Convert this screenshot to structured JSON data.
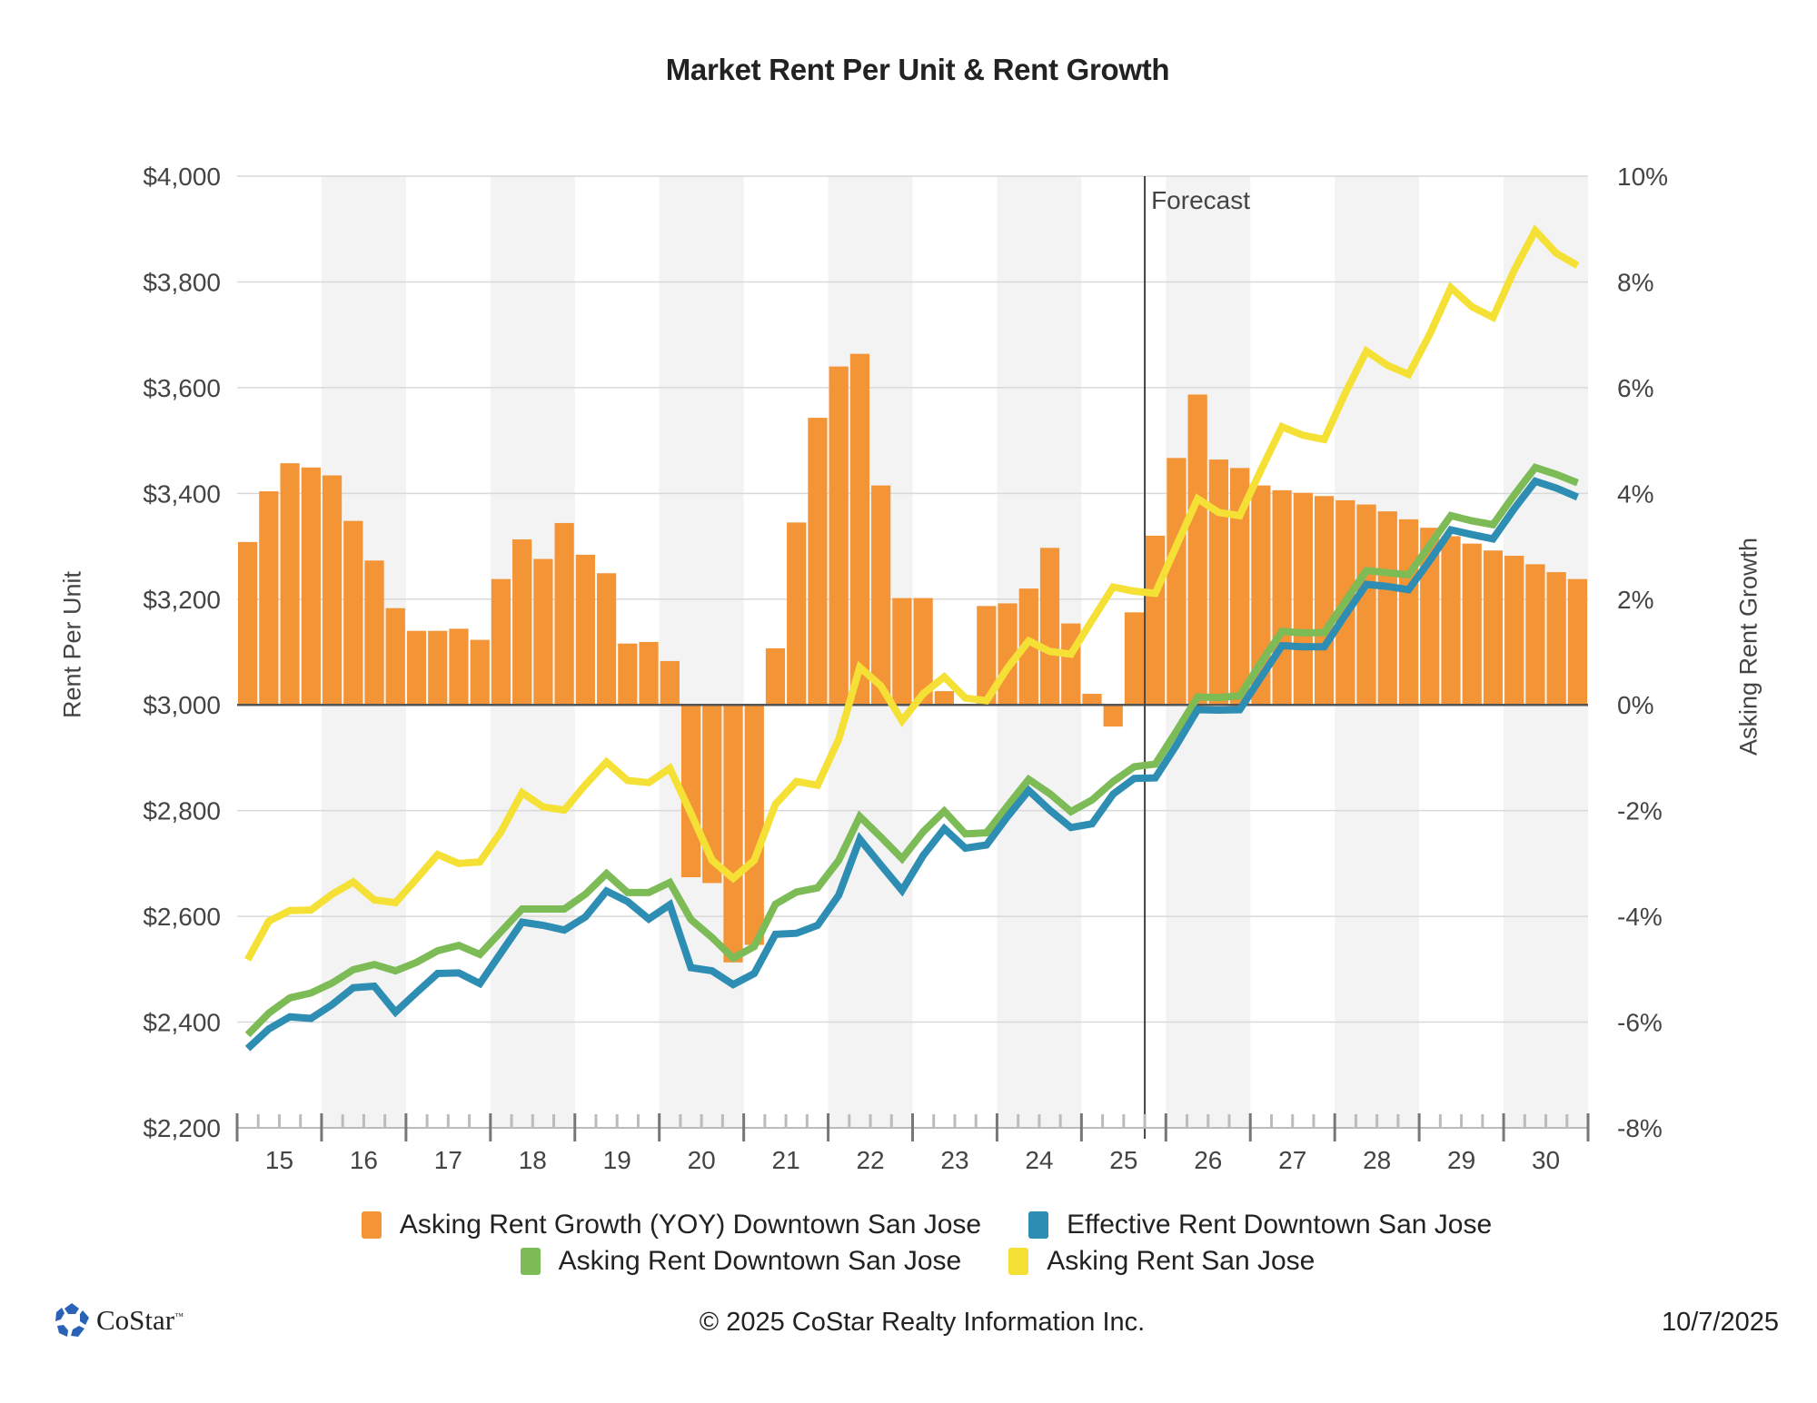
{
  "chart_data": {
    "type": "bar+line",
    "title": "Market Rent Per Unit & Rent Growth",
    "xlabel": "",
    "ylabel": "Rent Per Unit",
    "y2label": "Asking Rent Growth",
    "ylim": [
      2200,
      4000
    ],
    "y2lim": [
      -8,
      10
    ],
    "yticks": [
      "$2,200",
      "$2,400",
      "$2,600",
      "$2,800",
      "$3,000",
      "$3,200",
      "$3,400",
      "$3,600",
      "$3,800",
      "$4,000"
    ],
    "ytick_values": [
      2200,
      2400,
      2600,
      2800,
      3000,
      3200,
      3400,
      3600,
      3800,
      4000
    ],
    "y2ticks": [
      "-8%",
      "-6%",
      "-4%",
      "-2%",
      "0%",
      "2%",
      "4%",
      "6%",
      "8%",
      "10%"
    ],
    "y2tick_values": [
      -8,
      -6,
      -4,
      -2,
      0,
      2,
      4,
      6,
      8,
      10
    ],
    "categories": [
      "15",
      "16",
      "17",
      "18",
      "19",
      "20",
      "21",
      "22",
      "23",
      "24",
      "25",
      "26",
      "27",
      "28",
      "29",
      "30"
    ],
    "periods_per_category": 4,
    "grid": true,
    "alternating_shaded_years": true,
    "forecast": {
      "label": "Forecast",
      "starts_after_period_index": 42
    },
    "legend_position": "bottom",
    "series": [
      {
        "name": "Asking Rent Growth (YOY) Downtown San Jose",
        "type": "bar",
        "axis": "right",
        "color": "#f39436",
        "unit": "%",
        "values": [
          3.08,
          4.04,
          4.57,
          4.49,
          4.34,
          3.48,
          2.73,
          1.83,
          1.4,
          1.4,
          1.44,
          1.23,
          2.38,
          3.13,
          2.76,
          3.44,
          2.84,
          2.49,
          1.16,
          1.19,
          0.83,
          -3.26,
          -3.37,
          -4.87,
          -4.54,
          1.07,
          3.45,
          5.43,
          6.4,
          6.64,
          4.15,
          2.02,
          2.02,
          0.26,
          0.02,
          1.87,
          1.92,
          2.2,
          2.97,
          1.54,
          0.21,
          -0.41,
          1.75,
          3.2,
          4.67,
          5.87,
          4.64,
          4.48,
          4.15,
          4.06,
          4.01,
          3.95,
          3.87,
          3.79,
          3.66,
          3.51,
          3.35,
          3.19,
          3.05,
          2.92,
          2.82,
          2.66,
          2.51,
          2.38
        ]
      },
      {
        "name": "Effective Rent Downtown San Jose",
        "type": "line",
        "axis": "left",
        "color": "#2e8db3",
        "unit": "$",
        "values": [
          2350,
          2387,
          2410,
          2407,
          2433,
          2465,
          2468,
          2419,
          2456,
          2492,
          2493,
          2473,
          2531,
          2589,
          2583,
          2574,
          2599,
          2648,
          2628,
          2595,
          2622,
          2503,
          2497,
          2471,
          2492,
          2566,
          2568,
          2583,
          2640,
          2746,
          2697,
          2649,
          2715,
          2766,
          2729,
          2735,
          2789,
          2838,
          2801,
          2768,
          2775,
          2831,
          2861,
          2862,
          2924,
          2991,
          2990,
          2991,
          3052,
          3112,
          3110,
          3110,
          3170,
          3228,
          3224,
          3218,
          3273,
          3331,
          3322,
          3314,
          3371,
          3423,
          3410,
          3393
        ]
      },
      {
        "name": "Asking Rent Downtown San Jose",
        "type": "line",
        "axis": "left",
        "color": "#7dbb57",
        "unit": "$",
        "values": [
          2376,
          2417,
          2446,
          2455,
          2474,
          2499,
          2509,
          2497,
          2513,
          2535,
          2545,
          2528,
          2571,
          2614,
          2614,
          2614,
          2642,
          2681,
          2645,
          2645,
          2664,
          2594,
          2560,
          2521,
          2543,
          2623,
          2646,
          2654,
          2706,
          2789,
          2750,
          2709,
          2760,
          2799,
          2756,
          2758,
          2809,
          2859,
          2832,
          2798,
          2820,
          2855,
          2883,
          2888,
          2950,
          3015,
          3014,
          3017,
          3080,
          3139,
          3136,
          3137,
          3196,
          3254,
          3250,
          3246,
          3302,
          3358,
          3348,
          3341,
          3397,
          3449,
          3436,
          3420
        ]
      },
      {
        "name": "Asking Rent San Jose",
        "type": "line",
        "axis": "left",
        "color": "#f5e136",
        "unit": "$",
        "values": [
          2518,
          2591,
          2611,
          2612,
          2642,
          2665,
          2631,
          2626,
          2671,
          2717,
          2700,
          2703,
          2760,
          2834,
          2807,
          2801,
          2849,
          2892,
          2857,
          2853,
          2880,
          2795,
          2706,
          2672,
          2706,
          2812,
          2855,
          2848,
          2935,
          3071,
          3036,
          2970,
          3021,
          3053,
          3013,
          3008,
          3070,
          3121,
          3101,
          3096,
          3160,
          3223,
          3215,
          3211,
          3301,
          3390,
          3364,
          3358,
          3444,
          3526,
          3510,
          3502,
          3590,
          3669,
          3642,
          3625,
          3701,
          3789,
          3753,
          3733,
          3822,
          3897,
          3854,
          3831
        ]
      }
    ]
  },
  "axis_titles": {
    "left": "Rent Per Unit",
    "right": "Asking Rent Growth"
  },
  "legend": [
    {
      "label": "Asking Rent Growth (YOY) Downtown San Jose",
      "color": "#f39436"
    },
    {
      "label": "Effective Rent Downtown San Jose",
      "color": "#2e8db3"
    },
    {
      "label": "Asking Rent Downtown San Jose",
      "color": "#7dbb57"
    },
    {
      "label": "Asking Rent San Jose",
      "color": "#f5e136"
    }
  ],
  "footer": {
    "brand": "CoStar",
    "brand_tm": "™",
    "copyright": "© 2025 CoStar Realty Information Inc.",
    "date": "10/7/2025"
  },
  "colors": {
    "logo_blue": "#2a62b8",
    "band": "#f3f3f3",
    "grid": "#d9d9d9",
    "axis": "#555555"
  }
}
